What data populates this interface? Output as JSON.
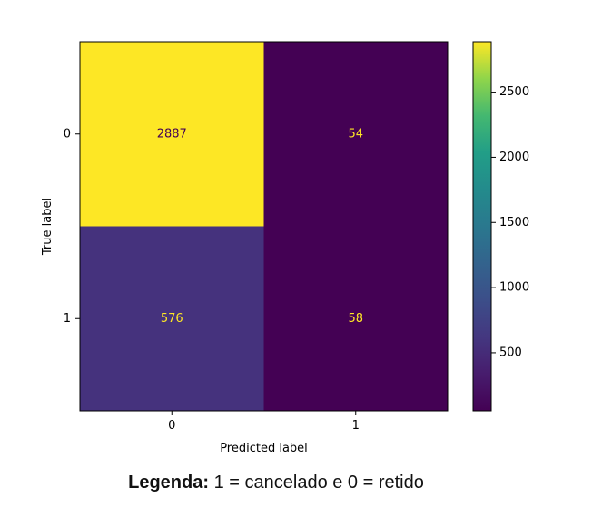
{
  "chart_data": {
    "type": "heatmap",
    "x_categories": [
      "0",
      "1"
    ],
    "y_categories": [
      "0",
      "1"
    ],
    "matrix": [
      [
        2887,
        54
      ],
      [
        576,
        58
      ]
    ],
    "xlabel": "Predicted label",
    "ylabel": "True label",
    "colormap": "viridis",
    "colorbar": {
      "range": [
        54,
        2887
      ],
      "ticks": [
        500,
        1000,
        1500,
        2000,
        2500
      ],
      "tick_labels": [
        "500",
        "1000",
        "1500",
        "2000",
        "2500"
      ]
    },
    "grid": false
  },
  "legend_caption": {
    "label": "Legenda:",
    "text": " 1 = cancelado e 0 = retido"
  }
}
